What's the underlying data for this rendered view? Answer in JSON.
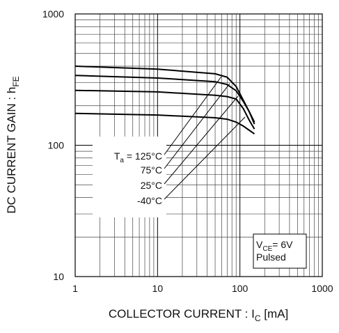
{
  "chart_data": {
    "type": "line",
    "x_label": {
      "text": "COLLECTOR CURRENT : I",
      "subscript": "C",
      "unit": " [mA]"
    },
    "y_label": {
      "text": "DC CURRENT GAIN : h",
      "subscript": "FE"
    },
    "x": [
      1,
      10,
      50,
      70,
      90,
      110,
      130,
      150
    ],
    "series": [
      {
        "name": "125°C",
        "color": "#000000",
        "values": [
          400,
          380,
          350,
          330,
          280,
          220,
          180,
          145
        ]
      },
      {
        "name": "75°C",
        "color": "#000000",
        "values": [
          340,
          325,
          305,
          290,
          260,
          215,
          180,
          150
        ]
      },
      {
        "name": "25°C",
        "color": "#000000",
        "values": [
          262,
          255,
          240,
          235,
          225,
          190,
          155,
          133
        ]
      },
      {
        "name": "-40°C",
        "color": "#000000",
        "values": [
          175,
          170,
          162,
          158,
          150,
          140,
          130,
          122
        ]
      }
    ],
    "legend_prefix": {
      "symbol": "T",
      "subscript": "a",
      "equals": " = "
    },
    "annotation": {
      "symbol": "V",
      "subscript": "CE",
      "text": "= 6V",
      "line2": "Pulsed"
    },
    "xlim": [
      1,
      1000
    ],
    "ylim": [
      10,
      1000
    ],
    "xticks": [
      1,
      10,
      100,
      1000
    ],
    "yticks": [
      10,
      100,
      1000
    ],
    "xminorticks": [
      2,
      3,
      4,
      5,
      6,
      7,
      8,
      9,
      20,
      30,
      40,
      50,
      60,
      70,
      80,
      90,
      200,
      300,
      400,
      500,
      600,
      700,
      800,
      900
    ],
    "yminorticks": [
      20,
      30,
      40,
      50,
      60,
      70,
      80,
      90,
      200,
      300,
      400,
      500,
      600,
      700,
      800,
      900
    ],
    "xscale": "log",
    "yscale": "log",
    "grid": true
  }
}
